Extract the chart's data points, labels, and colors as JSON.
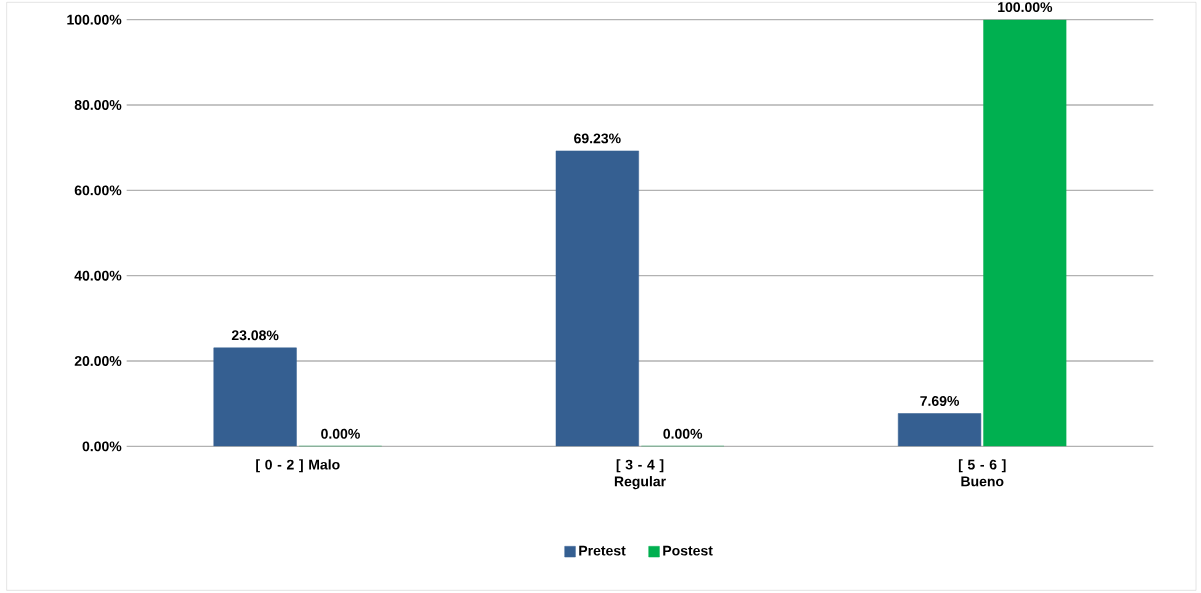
{
  "chart_data": {
    "type": "bar",
    "categories": [
      "[ 0 - 2 ] Malo",
      "[ 3 - 4 ] Regular",
      "[ 5 - 6 ] Bueno"
    ],
    "series": [
      {
        "name": "Pretest",
        "color": "#355f91",
        "values": [
          23.08,
          69.23,
          7.69
        ],
        "value_labels": [
          "23.08%",
          "69.23%",
          "7.69%"
        ]
      },
      {
        "name": "Postest",
        "color": "#00b050",
        "values": [
          0,
          0,
          100
        ],
        "value_labels": [
          "0.00%",
          "0.00%",
          "100.00%"
        ]
      }
    ],
    "ylim": [
      0,
      100
    ],
    "yticks": [
      {
        "value": 0,
        "label": "0.00%"
      },
      {
        "value": 20,
        "label": "20.00%"
      },
      {
        "value": 40,
        "label": "40.00%"
      },
      {
        "value": 60,
        "label": "60.00%"
      },
      {
        "value": 80,
        "label": "80.00%"
      },
      {
        "value": 100,
        "label": "100.00%"
      }
    ],
    "grid": "y",
    "legend": "bottom"
  }
}
